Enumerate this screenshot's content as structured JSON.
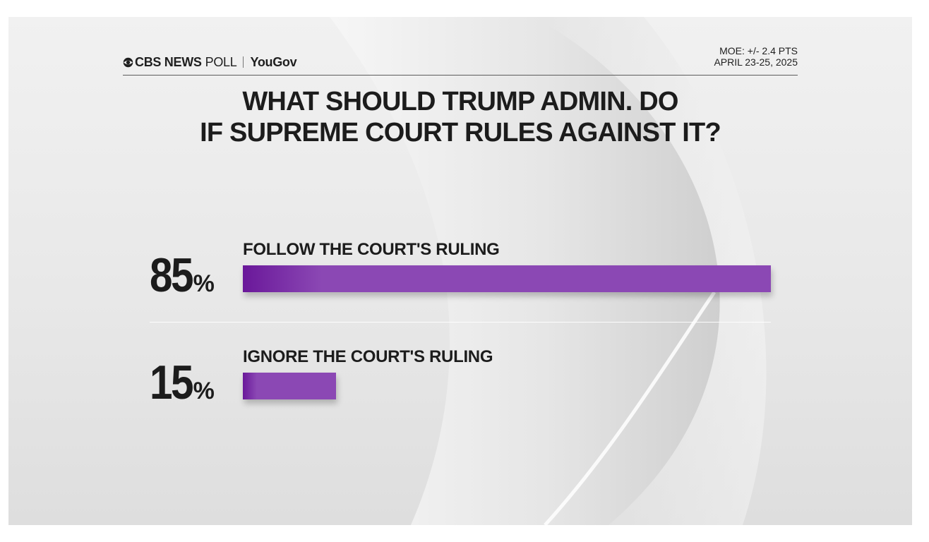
{
  "header": {
    "brand": "CBS NEWS",
    "brand_suffix": "POLL",
    "partner": "YouGov",
    "moe": "MOE: +/- 2.4 PTS",
    "dates": "APRIL 23-25, 2025"
  },
  "chart_data": {
    "type": "bar",
    "orientation": "horizontal",
    "title_lines": [
      "WHAT SHOULD TRUMP ADMIN. DO",
      "IF SUPREME COURT RULES AGAINST IT?"
    ],
    "categories": [
      "FOLLOW THE COURT'S RULING",
      "IGNORE THE COURT'S RULING"
    ],
    "values": [
      85,
      15
    ],
    "value_labels": [
      "85",
      "15"
    ],
    "unit": "%",
    "xlim": [
      0,
      85
    ],
    "bar_color": "#8b48b4",
    "bar_color_start": "#6a189a"
  }
}
